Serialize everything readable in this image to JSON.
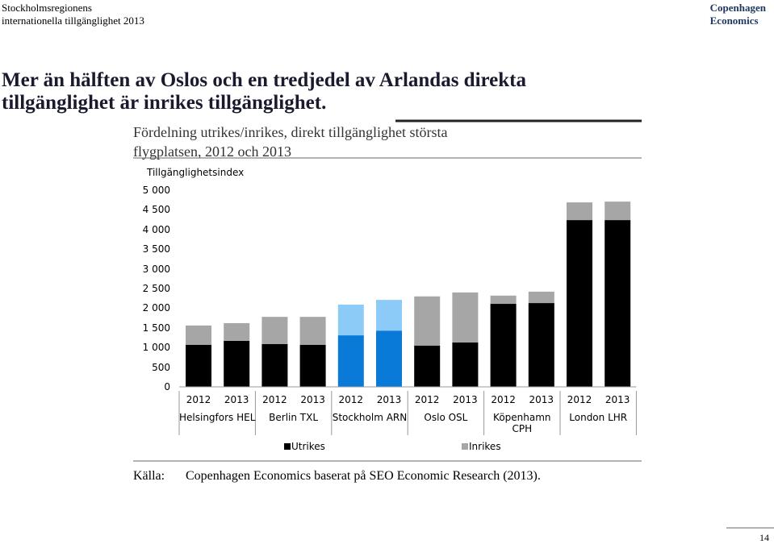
{
  "header": {
    "left": [
      "Stockholmsregionens",
      "internationella tillgänglighet 2013"
    ],
    "right": [
      "Copenhagen",
      "Economics"
    ]
  },
  "headline": [
    "Mer än hälften av Oslos och en tredjedel av Arlandas direkta",
    "tillgänglighet är inrikes tillgänglighet."
  ],
  "chart_data": {
    "type": "bar",
    "stacked": true,
    "title": [
      "Fördelning utrikes/inrikes, direkt tillgänglighet största",
      "flygplatsen, 2012 och 2013"
    ],
    "ylabel": "Tillgänglighetsindex",
    "categories": [
      "2012",
      "2013",
      "2012",
      "2013",
      "2012",
      "2013",
      "2012",
      "2013",
      "2012",
      "2013",
      "2012",
      "2013"
    ],
    "groups": [
      "Helsingfors HEL",
      "Berlin TXL",
      "Stockholm ARN",
      "Oslo OSL",
      "Köpenhamn CPH",
      "London LHR"
    ],
    "series": [
      {
        "name": "Utrikes",
        "color": [
          "#000000",
          "#000000",
          "#000000",
          "#000000",
          "#0a7ad9",
          "#0a7ad9",
          "#000000",
          "#000000",
          "#000000",
          "#000000",
          "#000000",
          "#000000"
        ],
        "values": [
          1070,
          1170,
          1090,
          1070,
          1310,
          1430,
          1050,
          1130,
          2110,
          2130,
          4240,
          4240
        ]
      },
      {
        "name": "Inrikes",
        "color": [
          "#a6a6a6",
          "#a6a6a6",
          "#a6a6a6",
          "#a6a6a6",
          "#8ccbf7",
          "#8ccbf7",
          "#a6a6a6",
          "#a6a6a6",
          "#a6a6a6",
          "#a6a6a6",
          "#a6a6a6",
          "#a6a6a6"
        ],
        "values": [
          490,
          450,
          690,
          710,
          780,
          780,
          1250,
          1270,
          210,
          290,
          450,
          470
        ]
      }
    ],
    "ylim": [
      0,
      5000
    ],
    "yticks": [
      0,
      500,
      {
        "value": 1000,
        "label": "1 000"
      },
      {
        "value": 1500,
        "label": "1 500"
      },
      {
        "value": 2000,
        "label": "2 000"
      },
      {
        "value": 2500,
        "label": "2 500"
      },
      {
        "value": 3000,
        "label": "3 000"
      },
      {
        "value": 3500,
        "label": "3 500"
      },
      {
        "value": 4000,
        "label": "4 000"
      },
      {
        "value": 4500,
        "label": "4 500"
      },
      {
        "value": 5000,
        "label": "5 000"
      }
    ],
    "legend": "bottom"
  },
  "source": {
    "label": "Källa:",
    "text": "Copenhagen Economics baserat på SEO Economic Research (2013)."
  },
  "page_number": "14"
}
